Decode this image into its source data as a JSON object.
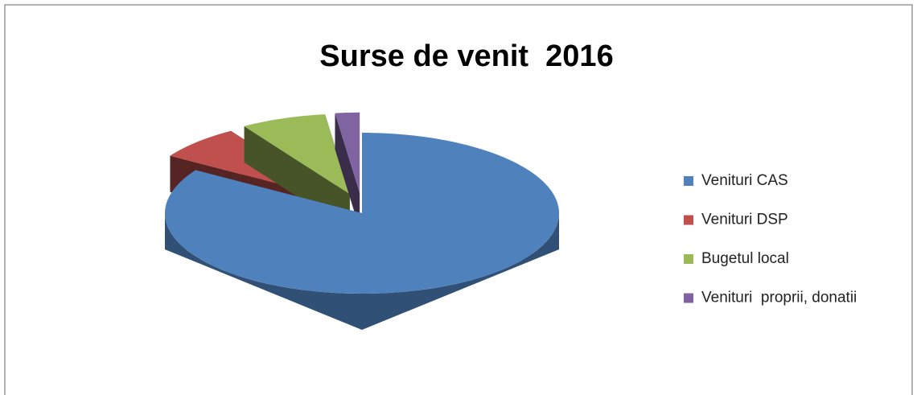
{
  "chart_data": {
    "type": "pie3d",
    "title": "Surse de venit  2016",
    "categories": [
      "Venituri CAS",
      "Venituri DSP",
      "Bugetul local",
      "Venituri  proprii, donatii"
    ],
    "values": [
      84,
      7,
      7,
      2
    ],
    "colors": [
      "#4f81bd",
      "#c0504d",
      "#9bbb59",
      "#8064a2"
    ],
    "legend": "right"
  }
}
